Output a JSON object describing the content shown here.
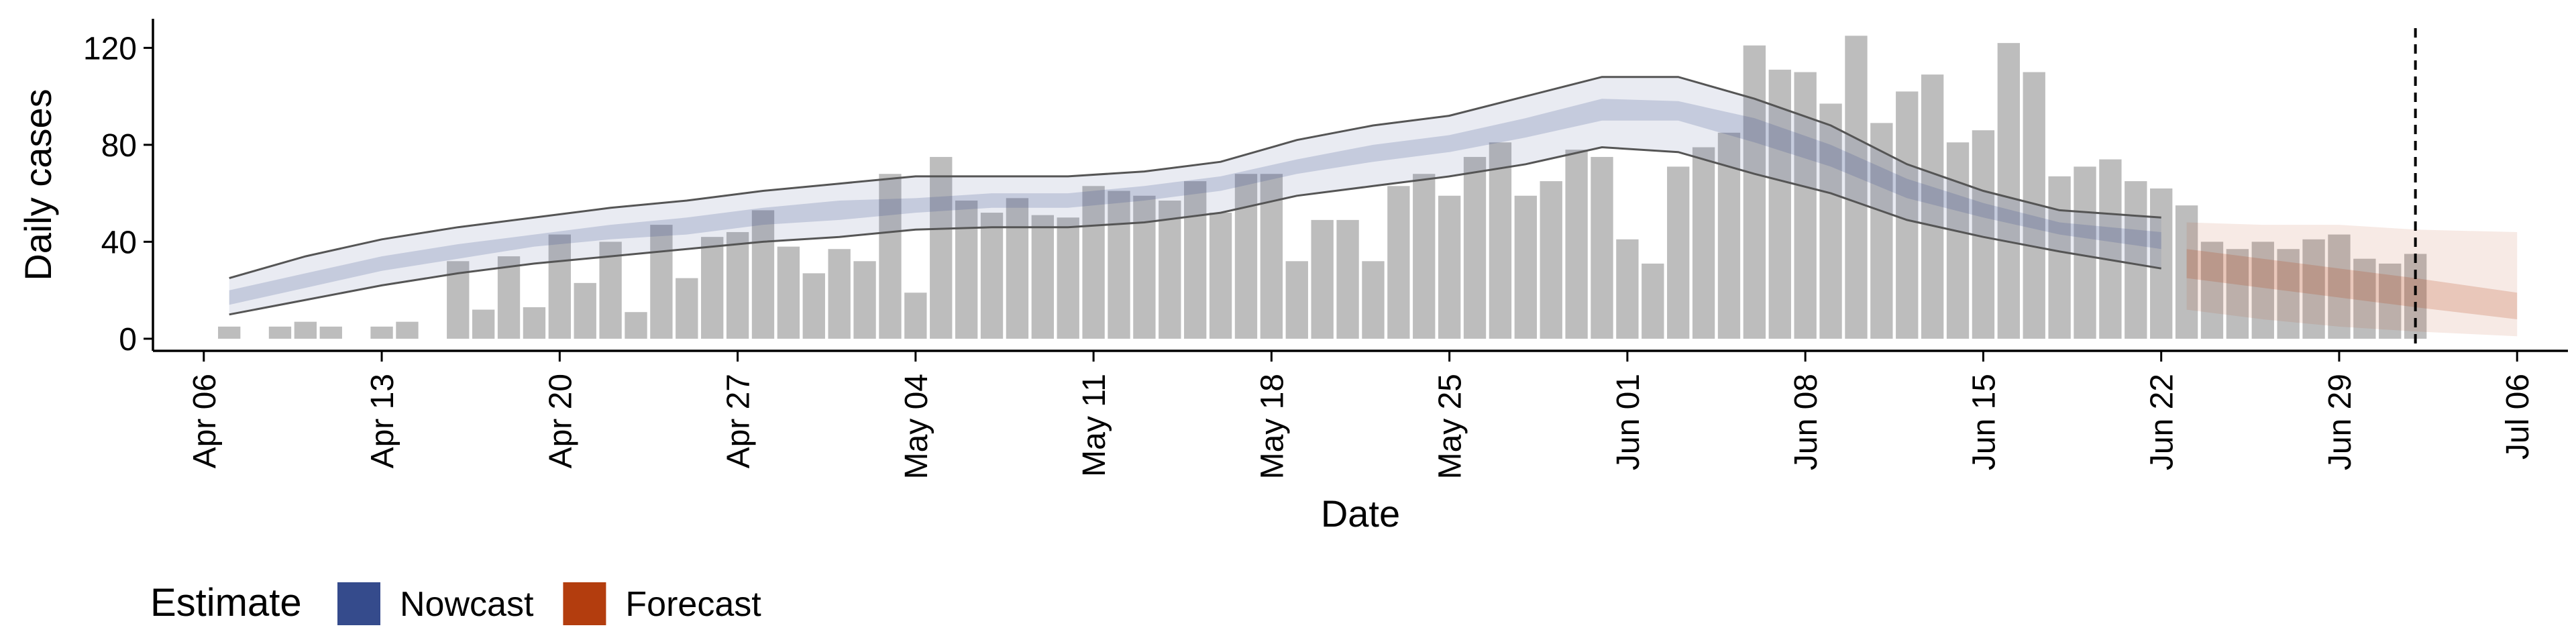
{
  "chart_data": {
    "type": "bar",
    "xlabel": "Date",
    "ylabel": "Daily cases",
    "ylim": [
      -5,
      132
    ],
    "yticks": [
      0,
      40,
      80,
      120
    ],
    "xlim": [
      "2020-04-04",
      "2020-07-08"
    ],
    "xticks": [
      "2020-04-06",
      "2020-04-13",
      "2020-04-20",
      "2020-04-27",
      "2020-05-04",
      "2020-05-11",
      "2020-05-18",
      "2020-05-25",
      "2020-06-01",
      "2020-06-08",
      "2020-06-15",
      "2020-06-22",
      "2020-06-29",
      "2020-07-06"
    ],
    "xtick_labels": [
      "Apr 06",
      "Apr 13",
      "Apr 20",
      "Apr 27",
      "May 04",
      "May 11",
      "May 18",
      "May 25",
      "Jun 01",
      "Jun 08",
      "Jun 15",
      "Jun 22",
      "Jun 29",
      "Jul 06"
    ],
    "bars": {
      "start_date": "2020-04-07",
      "values": [
        5,
        0,
        5,
        7,
        5,
        0,
        5,
        7,
        0,
        32,
        12,
        34,
        13,
        43,
        23,
        40,
        11,
        47,
        25,
        42,
        44,
        53,
        38,
        27,
        37,
        32,
        68,
        19,
        75,
        57,
        52,
        58,
        51,
        50,
        63,
        61,
        59,
        57,
        65,
        52,
        68,
        68,
        32,
        49,
        49,
        32,
        63,
        68,
        59,
        75,
        81,
        59,
        65,
        78,
        75,
        41,
        31,
        71,
        79,
        85,
        121,
        111,
        110,
        97,
        125,
        89,
        102,
        109,
        81,
        86,
        122,
        110,
        67,
        71,
        74,
        65,
        62,
        55,
        40,
        37,
        40,
        37,
        41,
        43,
        33,
        31,
        35
      ],
      "color": "#bdbdbd"
    },
    "dashed_line_date": "2020-07-02",
    "series": [
      {
        "name": "Nowcast",
        "color": "#354b8c",
        "dates": [
          "2020-04-07",
          "2020-04-10",
          "2020-04-13",
          "2020-04-16",
          "2020-04-19",
          "2020-04-22",
          "2020-04-25",
          "2020-04-28",
          "2020-05-01",
          "2020-05-04",
          "2020-05-07",
          "2020-05-10",
          "2020-05-13",
          "2020-05-16",
          "2020-05-19",
          "2020-05-22",
          "2020-05-25",
          "2020-05-28",
          "2020-05-31",
          "2020-06-03",
          "2020-06-06",
          "2020-06-09",
          "2020-06-12",
          "2020-06-15",
          "2020-06-18",
          "2020-06-22"
        ],
        "outer_lower": [
          10,
          16,
          22,
          27,
          31,
          34,
          37,
          40,
          42,
          45,
          46,
          46,
          48,
          52,
          59,
          63,
          67,
          72,
          79,
          77,
          68,
          60,
          49,
          42,
          36,
          29
        ],
        "outer_upper": [
          25,
          34,
          41,
          46,
          50,
          54,
          57,
          61,
          64,
          67,
          67,
          67,
          69,
          73,
          82,
          88,
          92,
          100,
          108,
          108,
          99,
          88,
          72,
          61,
          53,
          50
        ],
        "inner_lower": [
          14,
          21,
          28,
          33,
          38,
          41,
          43,
          47,
          49,
          52,
          54,
          54,
          57,
          61,
          68,
          73,
          77,
          83,
          90,
          90,
          81,
          71,
          58,
          50,
          43,
          37
        ],
        "inner_upper": [
          20,
          27,
          34,
          39,
          43,
          47,
          50,
          54,
          57,
          58,
          60,
          60,
          63,
          67,
          74,
          80,
          84,
          91,
          99,
          98,
          91,
          80,
          66,
          56,
          48,
          44
        ]
      },
      {
        "name": "Forecast",
        "color": "#b33d0e",
        "dates": [
          "2020-06-23",
          "2020-06-26",
          "2020-06-29",
          "2020-07-02",
          "2020-07-06"
        ],
        "outer_lower": [
          12,
          8,
          5,
          3,
          1
        ],
        "outer_upper": [
          48,
          47,
          47,
          45,
          44
        ],
        "inner_lower": [
          25,
          21,
          17,
          13,
          8
        ],
        "inner_upper": [
          37,
          33,
          29,
          25,
          19
        ]
      }
    ],
    "legend": {
      "title": "Estimate",
      "items": [
        {
          "label": "Nowcast",
          "color": "#354b8c"
        },
        {
          "label": "Forecast",
          "color": "#b33d0e"
        }
      ],
      "position": "bottom-left"
    }
  }
}
